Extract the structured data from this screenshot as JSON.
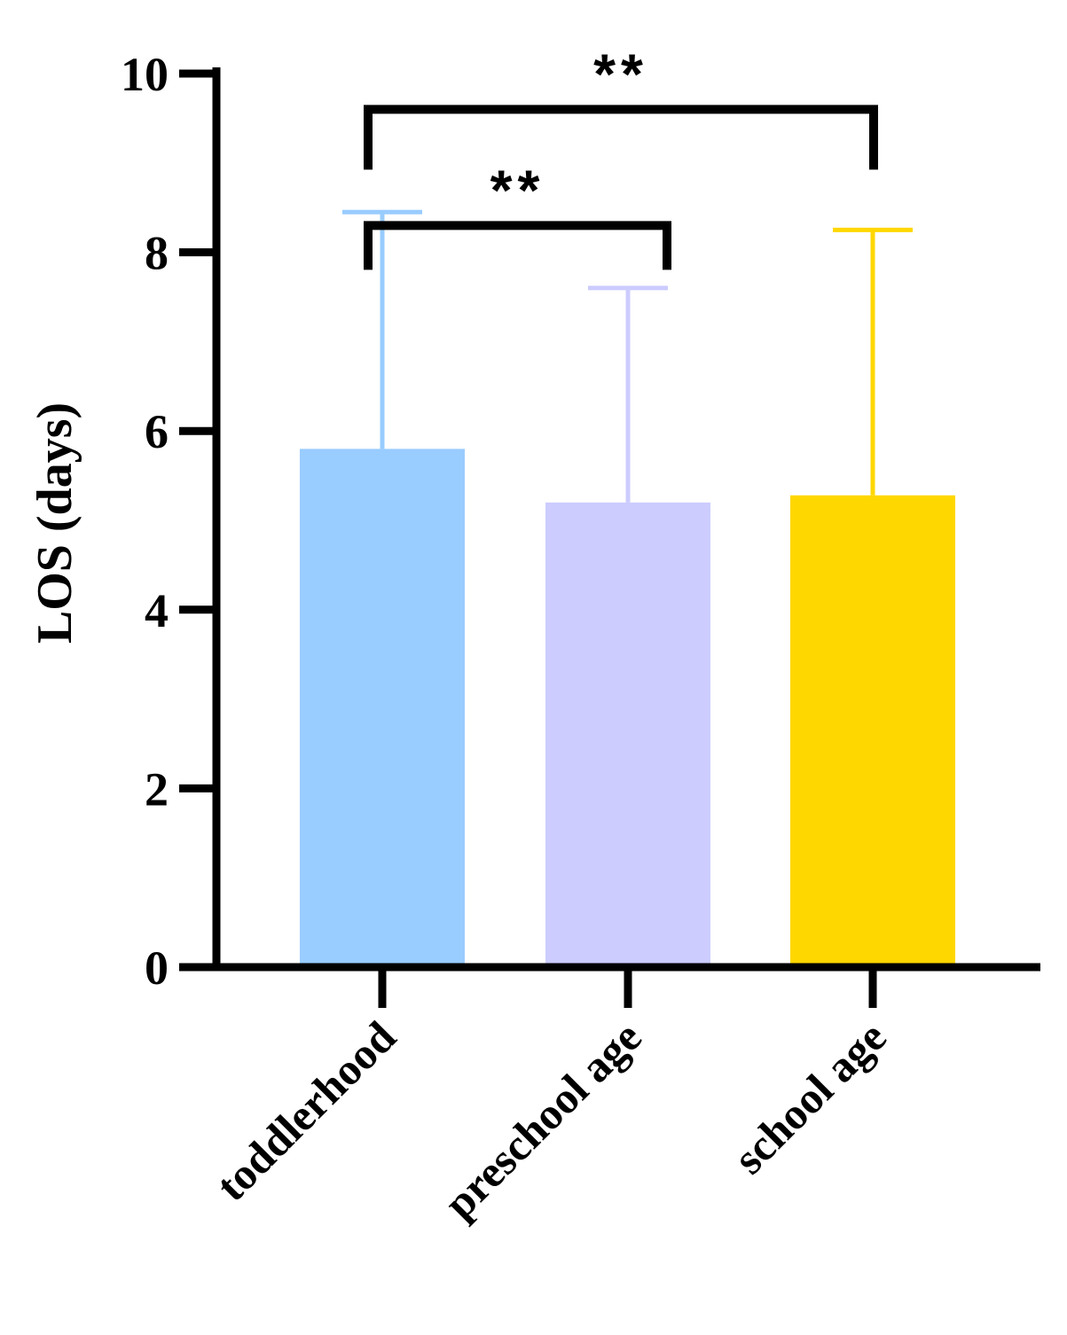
{
  "chart_data": {
    "type": "bar",
    "title": "",
    "ylabel": "LOS (days)",
    "xlabel": "",
    "ylim": [
      0,
      10
    ],
    "yticks": [
      0,
      2,
      4,
      6,
      8,
      10
    ],
    "ytick_labels": [
      "0",
      "2",
      "4",
      "6",
      "8",
      "10"
    ],
    "categories": [
      "toddlerhood",
      "preschool age",
      "school age"
    ],
    "values": [
      5.8,
      5.2,
      5.28
    ],
    "error_upper": [
      8.45,
      7.6,
      8.25
    ],
    "colors": [
      "#99ccff",
      "#ccccff",
      "#ffd700"
    ],
    "significance": [
      {
        "from": "toddlerhood",
        "to": "preschool age",
        "label": "**",
        "y": 8.3
      },
      {
        "from": "toddlerhood",
        "to": "school age",
        "label": "**",
        "y": 9.6
      }
    ],
    "grid": false,
    "legend": "none"
  }
}
